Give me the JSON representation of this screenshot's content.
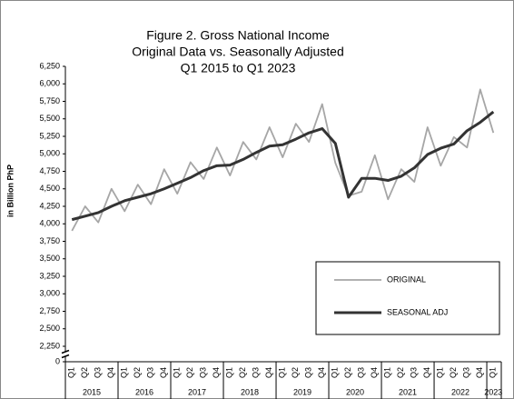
{
  "chart_data": {
    "type": "line",
    "title": [
      "Figure 2. Gross National Income",
      "Original Data vs. Seasonally Adjusted",
      "Q1 2015 to Q1 2023"
    ],
    "y_label": "in Billion PhP",
    "categories": [
      "Q1",
      "Q2",
      "Q3",
      "Q4",
      "Q1",
      "Q2",
      "Q3",
      "Q4",
      "Q1",
      "Q2",
      "Q3",
      "Q4",
      "Q1",
      "Q2",
      "Q3",
      "Q4",
      "Q1",
      "Q2",
      "Q3",
      "Q4",
      "Q1",
      "Q2",
      "Q3",
      "Q4",
      "Q1",
      "Q2",
      "Q3",
      "Q4",
      "Q1",
      "Q2",
      "Q3",
      "Q4",
      "Q1"
    ],
    "years": [
      "2015",
      "2016",
      "2017",
      "2018",
      "2019",
      "2020",
      "2021",
      "2022",
      "2023"
    ],
    "series": [
      {
        "name": "ORIGINAL",
        "color": "#a6a6a6",
        "values": [
          3900,
          4250,
          4020,
          4500,
          4180,
          4560,
          4280,
          4780,
          4430,
          4880,
          4640,
          5090,
          4690,
          5170,
          4920,
          5380,
          4950,
          5430,
          5170,
          5710,
          4870,
          4400,
          4460,
          4980,
          4350,
          4780,
          4600,
          5380,
          4830,
          5240,
          5090,
          5920,
          5300
        ]
      },
      {
        "name": "SEASONAL ADJ",
        "color": "#333333",
        "values": [
          4060,
          4110,
          4160,
          4250,
          4330,
          4380,
          4430,
          4500,
          4580,
          4660,
          4760,
          4830,
          4840,
          4920,
          5020,
          5110,
          5130,
          5210,
          5300,
          5360,
          5150,
          4380,
          4650,
          4650,
          4620,
          4680,
          4800,
          4990,
          5080,
          5140,
          5330,
          5450,
          5600
        ]
      }
    ],
    "ylim": [
      0,
      6250
    ],
    "yticks": [
      0,
      {
        "value": 2250,
        "label": "2,250"
      },
      {
        "value": 2500,
        "label": "2,500"
      },
      {
        "value": 2750,
        "label": "2,750"
      },
      {
        "value": 3000,
        "label": "3,000"
      },
      {
        "value": 3250,
        "label": "3,250"
      },
      {
        "value": 3500,
        "label": "3,500"
      },
      {
        "value": 3750,
        "label": "3,750"
      },
      {
        "value": 4000,
        "label": "4,000"
      },
      {
        "value": 4250,
        "label": "4,250"
      },
      {
        "value": 4500,
        "label": "4,500"
      },
      {
        "value": 4750,
        "label": "4,750"
      },
      {
        "value": 5000,
        "label": "5,000"
      },
      {
        "value": 5250,
        "label": "5,250"
      },
      {
        "value": 5500,
        "label": "5,500"
      },
      {
        "value": 5750,
        "label": "5,750"
      },
      {
        "value": 6000,
        "label": "6,000"
      },
      {
        "value": 6250,
        "label": "6,250"
      }
    ],
    "y_axis_break": true,
    "grid": false,
    "legend": "lower right"
  }
}
